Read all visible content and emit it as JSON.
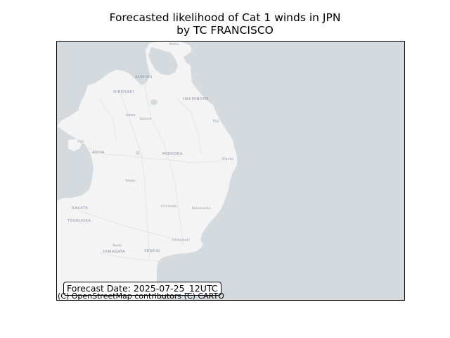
{
  "title": {
    "line1": "Forecasted likelihood of Cat 1 winds in JPN",
    "line2": "by TC FRANCISCO"
  },
  "forecast_date": "Forecast Date: 2025-07-25_12UTC",
  "attribution": "(C) OpenStreetMap contributors (C) CARTO",
  "map": {
    "colors": {
      "sea": "#d4dadd",
      "land": "#f3f4f3",
      "roads": "#e3e5e6",
      "labels": "#8c94a6"
    },
    "labels": {
      "mutsu": "Mutsu",
      "aomori": "AOMORI",
      "hirosaki": "HIROSAKI",
      "hachinohe": "HACHINOHE",
      "odate": "Odate",
      "kazuno": "Kazuno",
      "kuji": "Kuji",
      "oga": "Oga",
      "akita": "AKITA",
      "morioka": "MORIOKA",
      "miyako": "Miyako",
      "yokote": "Yokote",
      "sakata": "SAKATA",
      "tsuruoka": "TSURUOKA",
      "ichinoseki": "Ichinoseki",
      "kesennuma": "Kesennuma",
      "shinjo": "Shinjo",
      "ishinomaki": "Ishinomaki",
      "tendo": "Tendo",
      "yamagata": "YAMAGATA",
      "sendai": "SENDAI"
    }
  }
}
